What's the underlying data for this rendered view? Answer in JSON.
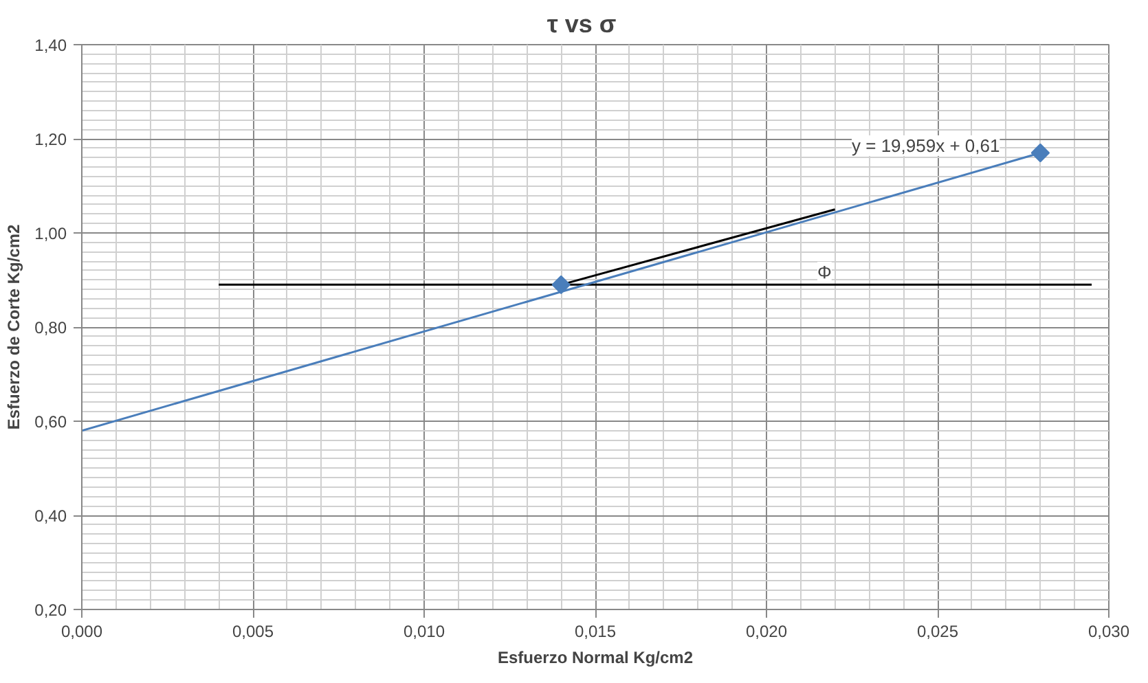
{
  "chart_data": {
    "type": "scatter",
    "title": "τ   vs   σ",
    "xlabel": "Esfuerzo Normal Kg/cm2",
    "ylabel": "Esfuerzo de Corte Kg/cm2",
    "xlim": [
      0,
      0.03
    ],
    "ylim": [
      0.2,
      1.4
    ],
    "xticks": [
      {
        "value": 0,
        "label": "0,000"
      },
      {
        "value": 0.005,
        "label": "0,005"
      },
      {
        "value": 0.01,
        "label": "0,010"
      },
      {
        "value": 0.015,
        "label": "0,015"
      },
      {
        "value": 0.02,
        "label": "0,020"
      },
      {
        "value": 0.025,
        "label": "0,025"
      },
      {
        "value": 0.03,
        "label": "0,030"
      }
    ],
    "yticks": [
      {
        "value": 0.2,
        "label": "0,20"
      },
      {
        "value": 0.4,
        "label": "0,40"
      },
      {
        "value": 0.6,
        "label": "0,60"
      },
      {
        "value": 0.8,
        "label": "0,80"
      },
      {
        "value": 1.0,
        "label": "1,00"
      },
      {
        "value": 1.2,
        "label": "1,20"
      },
      {
        "value": 1.4,
        "label": "1,40"
      }
    ],
    "grid": true,
    "series": [
      {
        "type": "line",
        "marker": "none",
        "color": "#000000",
        "x": [
          0.004,
          0.0295
        ],
        "values": [
          0.89,
          0.89
        ]
      },
      {
        "type": "line",
        "marker": "none",
        "color": "#000000",
        "x": [
          0.014,
          0.022
        ],
        "values": [
          0.89,
          1.05
        ]
      },
      {
        "type": "line",
        "marker": "none",
        "color": "#4a7ebb",
        "x": [
          0,
          0.028
        ],
        "values": [
          0.58,
          1.17
        ]
      },
      {
        "marker": "diamond",
        "color": "#4a7ebb",
        "x": [
          0.014,
          0.028
        ],
        "values": [
          0.89,
          1.17
        ]
      }
    ],
    "annotations": [
      "y = 19,959x + 0,61",
      "Φ"
    ]
  }
}
